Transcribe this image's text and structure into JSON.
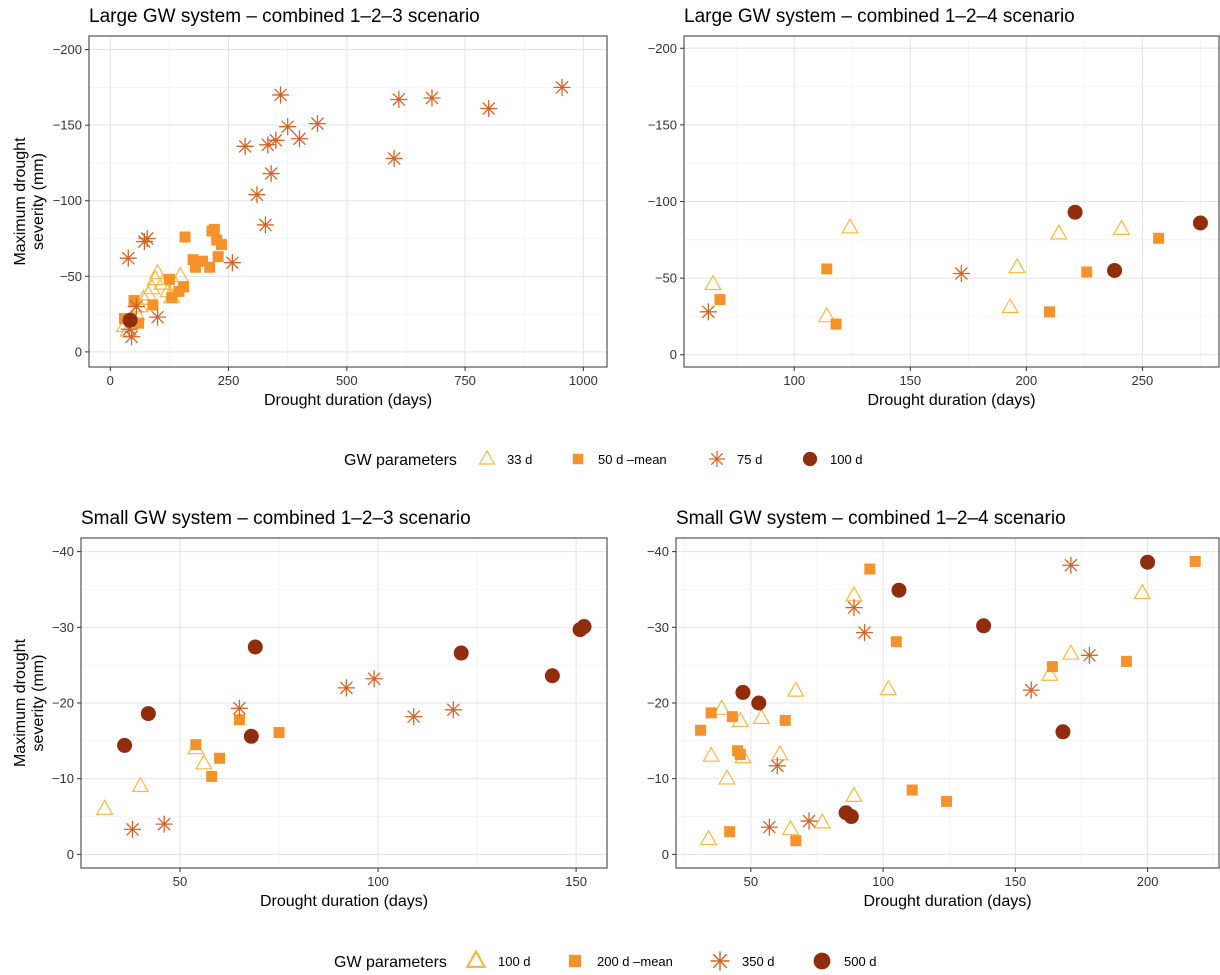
{
  "colors": {
    "c1": "#F5B942",
    "c2": "#F5922A",
    "c3": "#D2642A",
    "c4": "#8F2D0D"
  },
  "legends": [
    {
      "title": "GW parameters",
      "items": [
        {
          "label": "33 d",
          "shape": "triangle",
          "color": "#F5B942"
        },
        {
          "label": "50 d –mean",
          "shape": "square",
          "color": "#F5922A"
        },
        {
          "label": "75 d",
          "shape": "asterisk",
          "color": "#D2642A"
        },
        {
          "label": "100 d",
          "shape": "circle",
          "color": "#8F2D0D"
        }
      ]
    },
    {
      "title": "GW parameters",
      "items": [
        {
          "label": "100 d",
          "shape": "triangle",
          "color": "#F5B942"
        },
        {
          "label": "200 d –mean",
          "shape": "square",
          "color": "#F5922A"
        },
        {
          "label": "350 d",
          "shape": "asterisk",
          "color": "#D2642A"
        },
        {
          "label": "500 d",
          "shape": "circle",
          "color": "#8F2D0D"
        }
      ]
    }
  ],
  "chart_data": [
    {
      "type": "scatter",
      "title": "Large GW system – combined 1–2–3 scenario",
      "xlabel": "Drought duration (days)",
      "ylabel": [
        "Maximum drought",
        "severity (mm)"
      ],
      "xlim": [
        -45,
        1050
      ],
      "ylim": [
        10,
        -209
      ],
      "xticks": [
        0,
        250,
        500,
        750,
        1000
      ],
      "xtick_labels": [
        "0",
        "250",
        "500",
        "750",
        "1000"
      ],
      "yticks": [
        0,
        -50,
        -100,
        -150,
        -200
      ],
      "ytick_labels": [
        "0",
        "−50",
        "−100",
        "−150",
        "−200"
      ],
      "grid": true,
      "series": [
        {
          "name": "33 d",
          "shape": "triangle",
          "color": "#F5B942",
          "points": [
            [
              30,
              -17
            ],
            [
              38,
              -14
            ],
            [
              48,
              -22
            ],
            [
              55,
              -25
            ],
            [
              62,
              -30
            ],
            [
              70,
              -35
            ],
            [
              80,
              -38
            ],
            [
              88,
              -42
            ],
            [
              95,
              -48
            ],
            [
              100,
              -52
            ],
            [
              110,
              -45
            ],
            [
              122,
              -40
            ],
            [
              130,
              -36
            ],
            [
              138,
              -44
            ],
            [
              148,
              -50
            ]
          ]
        },
        {
          "name": "50 d –mean",
          "shape": "square",
          "color": "#F5922A",
          "points": [
            [
              30,
              -22
            ],
            [
              42,
              -20
            ],
            [
              50,
              -34
            ],
            [
              60,
              -19
            ],
            [
              90,
              -31
            ],
            [
              125,
              -48
            ],
            [
              130,
              -36
            ],
            [
              145,
              -40
            ],
            [
              155,
              -43
            ],
            [
              158,
              -76
            ],
            [
              175,
              -61
            ],
            [
              180,
              -56
            ],
            [
              195,
              -60
            ],
            [
              210,
              -56
            ],
            [
              215,
              -80
            ],
            [
              220,
              -81
            ],
            [
              225,
              -74
            ],
            [
              228,
              -63
            ],
            [
              235,
              -71
            ]
          ]
        },
        {
          "name": "75 d",
          "shape": "asterisk",
          "color": "#D2642A",
          "points": [
            [
              38,
              -62
            ],
            [
              40,
              -15
            ],
            [
              45,
              -10
            ],
            [
              55,
              -30
            ],
            [
              72,
              -73
            ],
            [
              78,
              -75
            ],
            [
              100,
              -23
            ],
            [
              258,
              -59
            ],
            [
              285,
              -136
            ],
            [
              310,
              -104
            ],
            [
              328,
              -84
            ],
            [
              333,
              -137
            ],
            [
              340,
              -118
            ],
            [
              350,
              -140
            ],
            [
              360,
              -170
            ],
            [
              375,
              -149
            ],
            [
              400,
              -141
            ],
            [
              438,
              -151
            ],
            [
              600,
              -128
            ],
            [
              610,
              -167
            ],
            [
              680,
              -168
            ],
            [
              800,
              -161
            ],
            [
              955,
              -175
            ]
          ]
        },
        {
          "name": "100 d",
          "shape": "circle",
          "color": "#8F2D0D",
          "points": [
            [
              42,
              -21
            ]
          ]
        }
      ]
    },
    {
      "type": "scatter",
      "title": "Large GW system – combined 1–2–4 scenario",
      "xlabel": "Drought duration (days)",
      "ylabel": [],
      "xlim": [
        52.5,
        283
      ],
      "ylim": [
        8,
        -208
      ],
      "xticks": [
        100,
        150,
        200,
        250
      ],
      "xtick_labels": [
        "100",
        "150",
        "200",
        "250"
      ],
      "yticks": [
        0,
        -50,
        -100,
        -150,
        -200
      ],
      "ytick_labels": [
        "0",
        "−50",
        "−100",
        "−150",
        "−200"
      ],
      "grid": true,
      "series": [
        {
          "name": "33 d",
          "shape": "triangle",
          "color": "#F5B942",
          "points": [
            [
              65,
              -46
            ],
            [
              114,
              -25
            ],
            [
              124,
              -83
            ],
            [
              193,
              -31
            ],
            [
              196,
              -57
            ],
            [
              214,
              -79
            ],
            [
              241,
              -82
            ]
          ]
        },
        {
          "name": "50 d –mean",
          "shape": "square",
          "color": "#F5922A",
          "points": [
            [
              68,
              -36
            ],
            [
              114,
              -56
            ],
            [
              118,
              -20
            ],
            [
              210,
              -28
            ],
            [
              226,
              -54
            ],
            [
              257,
              -76
            ]
          ]
        },
        {
          "name": "75 d",
          "shape": "asterisk",
          "color": "#D2642A",
          "points": [
            [
              63,
              -28
            ],
            [
              172,
              -53
            ]
          ]
        },
        {
          "name": "100 d",
          "shape": "circle",
          "color": "#8F2D0D",
          "points": [
            [
              221,
              -93
            ],
            [
              238,
              -55
            ],
            [
              275,
              -86
            ]
          ]
        }
      ]
    },
    {
      "type": "scatter",
      "title": "Small GW system – combined 1–2–3 scenario",
      "xlabel": "Drought duration (days)",
      "ylabel": [
        "Maximum drought",
        "severity (mm)"
      ],
      "xlim": [
        25,
        157.8
      ],
      "ylim": [
        1.8,
        -41.8
      ],
      "xticks": [
        50,
        100,
        150
      ],
      "xtick_labels": [
        "50",
        "100",
        "150"
      ],
      "yticks": [
        0,
        -10,
        -20,
        -30,
        -40
      ],
      "ytick_labels": [
        "0",
        "−10",
        "−20",
        "−30",
        "−40"
      ],
      "grid": true,
      "series": [
        {
          "name": "100 d",
          "shape": "triangle",
          "color": "#F5B942",
          "points": [
            [
              31,
              -6
            ],
            [
              40,
              -9
            ],
            [
              54,
              -14
            ],
            [
              56,
              -12
            ]
          ]
        },
        {
          "name": "200 d –mean",
          "shape": "square",
          "color": "#F5922A",
          "points": [
            [
              54,
              -14.5
            ],
            [
              58,
              -10.3
            ],
            [
              60,
              -12.7
            ],
            [
              65,
              -17.8
            ],
            [
              75,
              -16.1
            ]
          ]
        },
        {
          "name": "350 d",
          "shape": "asterisk",
          "color": "#D2642A",
          "points": [
            [
              38,
              -3.3
            ],
            [
              46,
              -4
            ],
            [
              65,
              -19.3
            ],
            [
              92,
              -22
            ],
            [
              99,
              -23.2
            ],
            [
              109,
              -18.2
            ],
            [
              119,
              -19.1
            ]
          ]
        },
        {
          "name": "500 d",
          "shape": "circle",
          "color": "#8F2D0D",
          "points": [
            [
              36,
              -14.4
            ],
            [
              42,
              -18.6
            ],
            [
              68,
              -15.6
            ],
            [
              69,
              -27.4
            ],
            [
              121,
              -26.6
            ],
            [
              144,
              -23.6
            ],
            [
              151,
              -29.7
            ],
            [
              152,
              -30.1
            ]
          ]
        }
      ]
    },
    {
      "type": "scatter",
      "title": "Small GW system – combined 1–2–4 scenario",
      "xlabel": "Drought duration (days)",
      "ylabel": [],
      "xlim": [
        21.7,
        227
      ],
      "ylim": [
        1.8,
        -41.8
      ],
      "xticks": [
        50,
        100,
        150,
        200
      ],
      "xtick_labels": [
        "50",
        "100",
        "150",
        "200"
      ],
      "yticks": [
        0,
        -10,
        -20,
        -30,
        -40
      ],
      "ytick_labels": [
        "0",
        "−10",
        "−20",
        "−30",
        "−40"
      ],
      "grid": true,
      "series": [
        {
          "name": "100 d",
          "shape": "triangle",
          "color": "#F5B942",
          "points": [
            [
              34,
              -2
            ],
            [
              35,
              -13
            ],
            [
              39,
              -19.2
            ],
            [
              41,
              -10
            ],
            [
              46,
              -17.6
            ],
            [
              47,
              -12.8
            ],
            [
              54,
              -18
            ],
            [
              61,
              -13.2
            ],
            [
              65,
              -3.3
            ],
            [
              67,
              -21.6
            ],
            [
              77,
              -4.2
            ],
            [
              89,
              -34.2
            ],
            [
              89,
              -7.7
            ],
            [
              102,
              -21.8
            ],
            [
              163,
              -23.7
            ],
            [
              171,
              -26.5
            ],
            [
              198,
              -34.5
            ]
          ]
        },
        {
          "name": "200 d –mean",
          "shape": "square",
          "color": "#F5922A",
          "points": [
            [
              31,
              -16.4
            ],
            [
              35,
              -18.7
            ],
            [
              42,
              -3
            ],
            [
              43,
              -18.2
            ],
            [
              45,
              -13.7
            ],
            [
              46,
              -13.2
            ],
            [
              63,
              -17.7
            ],
            [
              67,
              -1.8
            ],
            [
              95,
              -37.7
            ],
            [
              105,
              -28.1
            ],
            [
              111,
              -8.5
            ],
            [
              124,
              -7
            ],
            [
              164,
              -24.8
            ],
            [
              192,
              -25.5
            ],
            [
              218,
              -38.7
            ]
          ]
        },
        {
          "name": "350 d",
          "shape": "asterisk",
          "color": "#D2642A",
          "points": [
            [
              57,
              -3.6
            ],
            [
              60,
              -11.7
            ],
            [
              72,
              -4.4
            ],
            [
              89,
              -32.6
            ],
            [
              93,
              -29.3
            ],
            [
              156,
              -21.7
            ],
            [
              171,
              -38.2
            ],
            [
              178,
              -26.3
            ]
          ]
        },
        {
          "name": "500 d",
          "shape": "circle",
          "color": "#8F2D0D",
          "points": [
            [
              47,
              -21.4
            ],
            [
              53,
              -20
            ],
            [
              86,
              -5.5
            ],
            [
              88,
              -5
            ],
            [
              106,
              -34.9
            ],
            [
              138,
              -30.2
            ],
            [
              168,
              -16.2
            ],
            [
              200,
              -38.6
            ]
          ]
        }
      ]
    }
  ]
}
